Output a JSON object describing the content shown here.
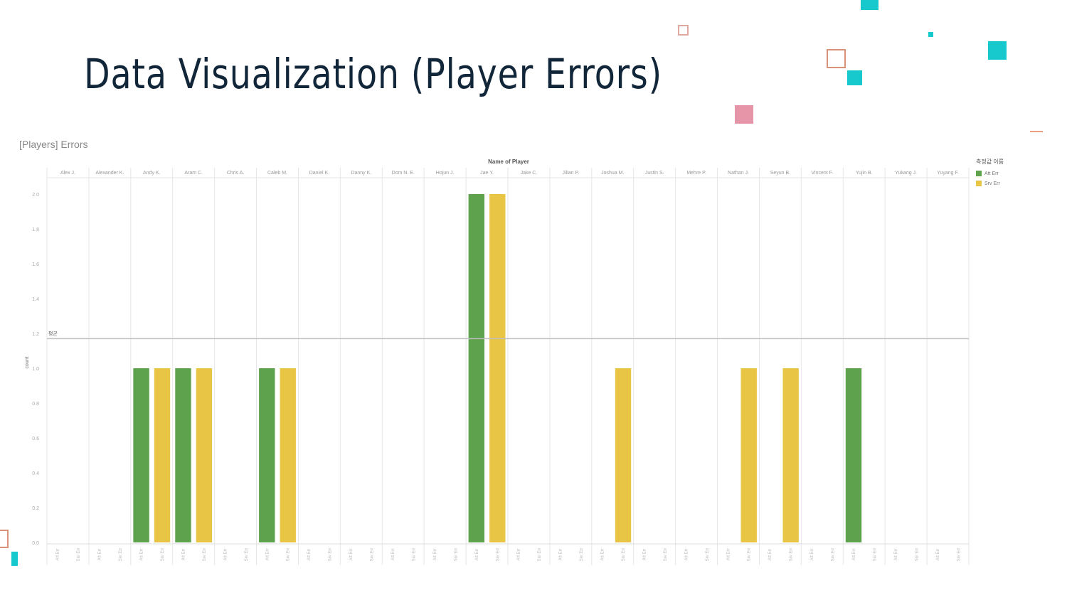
{
  "slide": {
    "title": "Data Visualization (Player Errors)"
  },
  "colors": {
    "title": "#12263a",
    "teal": "#17c9cc",
    "pink": "#e694a8",
    "orange_outline": "#d9927a",
    "att_err": "#5fa24d",
    "srv_err": "#e8c545",
    "grid": "#e6e6e6",
    "reference_line": "#bfbfbf"
  },
  "chart_data": {
    "type": "bar",
    "title": "[Players] Errors",
    "header_title": "Name of Player",
    "ylabel": "count",
    "ylim": [
      0,
      2.0
    ],
    "yticks": [
      "2.0",
      "1.8",
      "1.6",
      "1.4",
      "1.2",
      "1.0",
      "0.8",
      "0.6",
      "0.4",
      "0.2",
      "0.0"
    ],
    "reference_line": {
      "label": "평균",
      "value": 1.17
    },
    "categories": [
      "Alex J.",
      "Alexander K.",
      "Andy K.",
      "Aram C.",
      "Chris A.",
      "Caleb M.",
      "Daniel K.",
      "Danny K.",
      "Dom N. E.",
      "Hojun J.",
      "Jae Y.",
      "Jake C.",
      "Jilian P.",
      "Joshua M.",
      "Justin S.",
      "Mehre P.",
      "Nathan J.",
      "Seyun B.",
      "Vincent F.",
      "Yujin B.",
      "Yukang J.",
      "Yuyang F."
    ],
    "sub_labels": [
      "Att Err",
      "Srv Err"
    ],
    "legend_title": "측정값 이름",
    "series": [
      {
        "name": "Att Err",
        "values": [
          0,
          0,
          1,
          1,
          0,
          1,
          0,
          0,
          0,
          0,
          2,
          0,
          0,
          0,
          0,
          0,
          0,
          0,
          0,
          1,
          0,
          0
        ]
      },
      {
        "name": "Srv Err",
        "values": [
          0,
          0,
          1,
          1,
          0,
          1,
          0,
          0,
          0,
          0,
          2,
          0,
          0,
          1,
          0,
          0,
          1,
          1,
          0,
          0,
          0,
          0
        ]
      }
    ]
  }
}
